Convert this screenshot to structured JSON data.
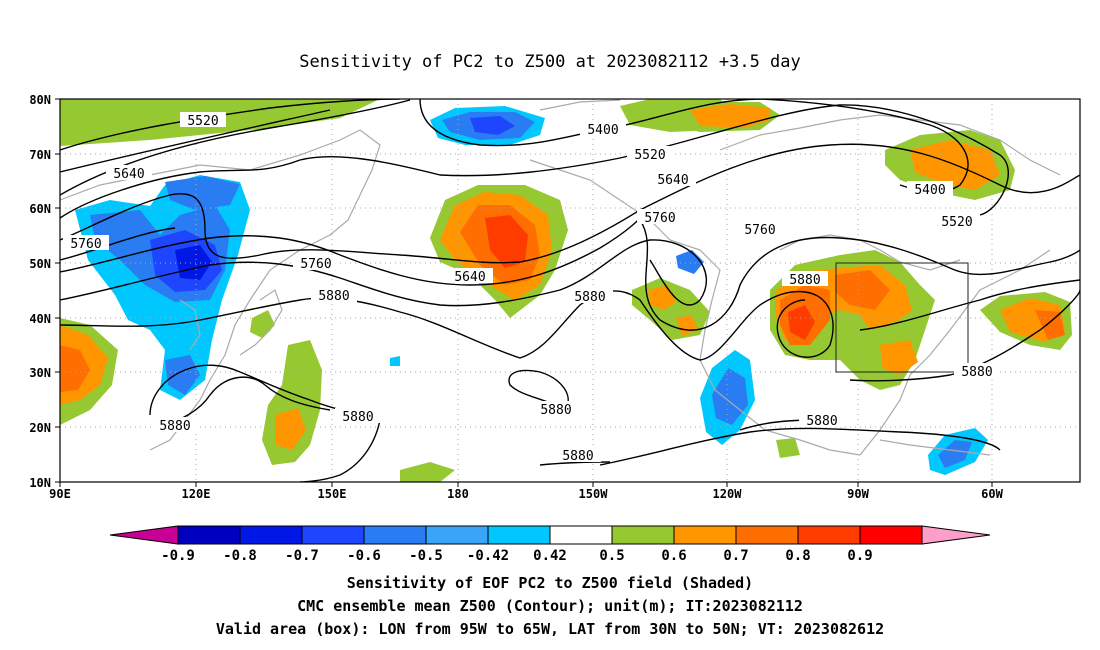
{
  "title": "Sensitivity of PC2 to Z500 at 2023082112 +3.5 day",
  "axes": {
    "lat_labels": [
      "80N",
      "70N",
      "60N",
      "50N",
      "40N",
      "30N",
      "20N",
      "10N"
    ],
    "lon_labels": [
      "90E",
      "120E",
      "150E",
      "180",
      "150W",
      "120W",
      "90W",
      "60W"
    ]
  },
  "colorbar": {
    "labels": [
      "-0.9",
      "-0.8",
      "-0.7",
      "-0.6",
      "-0.5",
      "-0.42",
      "0.42",
      "0.5",
      "0.6",
      "0.7",
      "0.8",
      "0.9"
    ],
    "colors": [
      "#c80096",
      "#0000c0",
      "#0018e6",
      "#1e46ff",
      "#2a7cf2",
      "#3aa4f8",
      "#00c8ff",
      "#ffffff",
      "#96c832",
      "#ff9600",
      "#ff6e00",
      "#ff3c00",
      "#ff0000",
      "#ff9ec8"
    ]
  },
  "contour_labels": [
    {
      "text": "5520"
    },
    {
      "text": "5400"
    },
    {
      "text": "5520"
    },
    {
      "text": "5640"
    },
    {
      "text": "5640"
    },
    {
      "text": "5760"
    },
    {
      "text": "5760"
    },
    {
      "text": "5400"
    },
    {
      "text": "5520"
    },
    {
      "text": "5760"
    },
    {
      "text": "5640"
    },
    {
      "text": "5760"
    },
    {
      "text": "5880"
    },
    {
      "text": "5880"
    },
    {
      "text": "5880"
    },
    {
      "text": "5880"
    },
    {
      "text": "5880"
    },
    {
      "text": "5880"
    },
    {
      "text": "5880"
    },
    {
      "text": "5880"
    },
    {
      "text": "5880"
    }
  ],
  "captions": {
    "line1": "Sensitivity of EOF PC2 to Z500 field (Shaded)",
    "line2": "CMC ensemble mean Z500 (Contour); unit(m); IT:2023082112",
    "line3": "Valid area (box): LON from 95W to 65W, LAT from 30N to 50N; VT: 2023082612"
  },
  "valid_box": {
    "lon_min": "95W",
    "lon_max": "65W",
    "lat_min": "30N",
    "lat_max": "50N"
  }
}
